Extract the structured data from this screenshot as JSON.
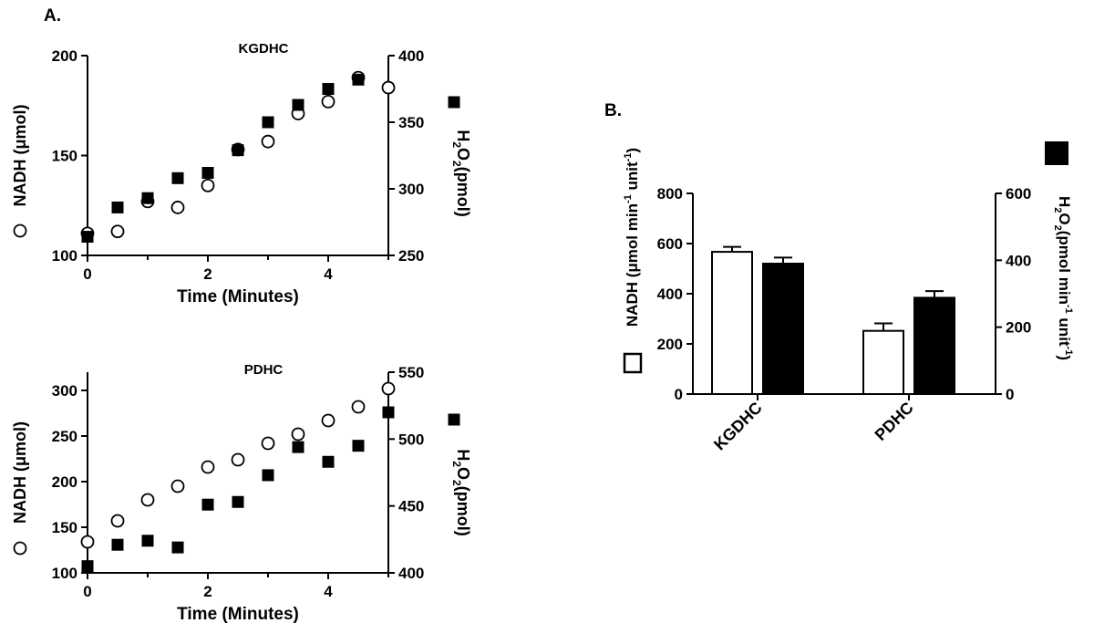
{
  "panel_labels": {
    "a": "A.",
    "b": "B."
  },
  "colors": {
    "ink": "#000000",
    "open_fill": "#ffffff",
    "solid_fill": "#000000"
  },
  "chart_data": [
    {
      "id": "kgdhc_time",
      "type": "scatter",
      "title": "KGDHC",
      "xlabel": "Time (Minutes)",
      "ylabel_left": "NADH (μmol)",
      "ylabel_right": {
        "prefix": "H",
        "sub1": "2",
        "mid": "O",
        "sub2": "2",
        "suffix": "(pmol)"
      },
      "xlim": [
        0,
        5
      ],
      "xticks": [
        "0",
        "2",
        "4"
      ],
      "ylim_left": [
        100,
        200
      ],
      "yticks_left": [
        "100",
        "150",
        "200"
      ],
      "ylim_right": [
        250,
        400
      ],
      "yticks_right": [
        "250",
        "300",
        "350",
        "400"
      ],
      "legend": {
        "left": "open-circle",
        "right": "filled-square"
      },
      "series": [
        {
          "marker": "open-circle",
          "axis": "left",
          "x": [
            0,
            0.5,
            1,
            1.5,
            2,
            2.5,
            3,
            3.5,
            4,
            4.5,
            5
          ],
          "y": [
            111,
            112,
            127,
            124,
            135,
            153,
            157,
            171,
            177,
            189,
            184
          ]
        },
        {
          "marker": "filled-square",
          "axis": "right",
          "x": [
            0,
            0.5,
            1,
            1.5,
            2,
            2.5,
            3,
            3.5,
            4,
            4.5
          ],
          "y": [
            264,
            286,
            293,
            308,
            312,
            329,
            350,
            363,
            375,
            382
          ]
        }
      ]
    },
    {
      "id": "pdhc_time",
      "type": "scatter",
      "title": "PDHC",
      "xlabel": "Time (Minutes)",
      "ylabel_left": "NADH (μmol)",
      "ylabel_right": {
        "prefix": "H",
        "sub1": "2",
        "mid": "O",
        "sub2": "2",
        "suffix": "(pmol)"
      },
      "xlim": [
        0,
        5
      ],
      "xticks": [
        "0",
        "2",
        "4"
      ],
      "ylim_left": [
        100,
        320
      ],
      "yticks_left": [
        "100",
        "150",
        "200",
        "250",
        "300"
      ],
      "ylim_right": [
        400,
        550
      ],
      "yticks_right": [
        "400",
        "450",
        "500",
        "550"
      ],
      "legend": {
        "left": "open-circle",
        "right": "filled-square"
      },
      "series": [
        {
          "marker": "open-circle",
          "axis": "left",
          "x": [
            0,
            0.5,
            1,
            1.5,
            2,
            2.5,
            3,
            3.5,
            4,
            4.5,
            5
          ],
          "y": [
            134,
            157,
            180,
            195,
            216,
            224,
            242,
            252,
            267,
            282,
            302
          ]
        },
        {
          "marker": "filled-square",
          "axis": "right",
          "x": [
            0,
            0.5,
            1,
            1.5,
            2,
            2.5,
            3,
            3.5,
            4,
            4.5,
            5
          ],
          "y": [
            405,
            421,
            424,
            419,
            451,
            453,
            473,
            494,
            483,
            495,
            520
          ]
        }
      ]
    },
    {
      "id": "rates_bar",
      "type": "bar",
      "categories": [
        "KGDHC",
        "PDHC"
      ],
      "ylabel_left": {
        "prefix": "NADH (μmol min",
        "sup1": "-1",
        "mid": " unit",
        "sup2": "-1",
        "suffix": ")"
      },
      "ylabel_right": {
        "prefix": "H",
        "sub1": "2",
        "mid": "O",
        "sub2": "2",
        "middle": "(pmol min",
        "sup1": "-1",
        "mid2": " unit",
        "sup2": "-1",
        "suffix": ")"
      },
      "ylim_left": [
        0,
        800
      ],
      "yticks_left": [
        "0",
        "200",
        "400",
        "600",
        "800"
      ],
      "ylim_right": [
        0,
        600
      ],
      "yticks_right": [
        "0",
        "200",
        "400",
        "600"
      ],
      "legend": {
        "left": "open-bar",
        "right": "filled-bar"
      },
      "series": [
        {
          "fill": "open",
          "axis": "left",
          "values": [
            567,
            252
          ],
          "errors": [
            20,
            30
          ]
        },
        {
          "fill": "filled",
          "axis": "right",
          "values": [
            390,
            288
          ],
          "errors": [
            18,
            20
          ]
        }
      ]
    }
  ]
}
